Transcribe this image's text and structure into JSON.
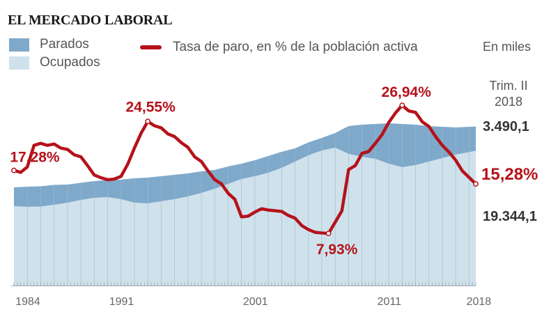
{
  "header": {
    "title": "EL MERCADO LABORAL",
    "units": "En miles",
    "period_line1": "Trim. II",
    "period_line2": "2018"
  },
  "legend": {
    "parados": "Parados",
    "ocupados": "Ocupados",
    "tasa": "Tasa de paro, en % de la población activa"
  },
  "colors": {
    "parados": "#7fa9cb",
    "ocupados": "#cfe2ec",
    "tasa": "#b5121b",
    "gridline": "#9fb9c9"
  },
  "side_labels": {
    "parados_last": "3.490,1",
    "tasa_last": "15,28%",
    "ocupados_last": "19.344,1"
  },
  "chart_data": {
    "type": "area",
    "title": "EL MERCADO LABORAL",
    "xlabel": "",
    "ylabel": "En miles",
    "x_ticks": [
      "1984",
      "1991",
      "2001",
      "2011",
      "2018"
    ],
    "x_range": [
      1984.0,
      2018.5
    ],
    "ylim": [
      0,
      24000
    ],
    "rate_ylim": [
      0,
      26
    ],
    "grid": "vertical-yearly",
    "legend_position": "top-left",
    "years": [
      1984.0,
      1985.0,
      1986.0,
      1987.0,
      1988.0,
      1989.0,
      1990.0,
      1991.0,
      1992.0,
      1993.0,
      1994.0,
      1995.0,
      1996.0,
      1997.0,
      1998.0,
      1999.0,
      2000.0,
      2001.0,
      2002.0,
      2003.0,
      2004.0,
      2005.0,
      2006.0,
      2007.0,
      2008.0,
      2009.0,
      2010.0,
      2011.0,
      2012.0,
      2013.0,
      2014.0,
      2015.0,
      2016.0,
      2017.0,
      2018.5
    ],
    "series": [
      {
        "name": "Ocupados",
        "values": [
          11400,
          11300,
          11350,
          11600,
          11900,
          12300,
          12600,
          12700,
          12400,
          11900,
          11800,
          12100,
          12400,
          12800,
          13300,
          13900,
          14600,
          15300,
          15700,
          16200,
          16900,
          17800,
          18700,
          19400,
          19800,
          18900,
          18500,
          18200,
          17500,
          17000,
          17300,
          17800,
          18300,
          18800,
          19344
        ]
      },
      {
        "name": "Parados",
        "values": [
          2700,
          2900,
          2900,
          2850,
          2600,
          2450,
          2400,
          2450,
          2800,
          3500,
          3700,
          3600,
          3500,
          3300,
          3100,
          2700,
          2500,
          2200,
          2300,
          2400,
          2300,
          1900,
          1850,
          1800,
          2100,
          4000,
          4600,
          5000,
          5800,
          6200,
          5800,
          5100,
          4500,
          3900,
          3490
        ]
      }
    ],
    "rate_series": {
      "name": "Tasa de paro, en % de la población activa",
      "years": [
        1984.0,
        1984.5,
        1985.0,
        1985.5,
        1986.0,
        1986.5,
        1987.0,
        1987.5,
        1988.0,
        1988.5,
        1989.0,
        1989.5,
        1990.0,
        1990.5,
        1991.0,
        1991.5,
        1992.0,
        1992.5,
        1993.0,
        1993.5,
        1994.0,
        1994.5,
        1995.0,
        1995.5,
        1996.0,
        1996.5,
        1997.0,
        1997.5,
        1998.0,
        1998.5,
        1999.0,
        1999.5,
        2000.0,
        2000.5,
        2001.0,
        2001.5,
        2002.0,
        2002.5,
        2003.0,
        2003.5,
        2004.0,
        2004.5,
        2005.0,
        2005.5,
        2006.0,
        2006.5,
        2007.0,
        2007.5,
        2008.0,
        2008.5,
        2009.0,
        2009.5,
        2010.0,
        2010.5,
        2011.0,
        2011.5,
        2012.0,
        2012.5,
        2013.0,
        2013.5,
        2014.0,
        2014.5,
        2015.0,
        2015.5,
        2016.0,
        2016.5,
        2017.0,
        2017.5,
        2018.5
      ],
      "values": [
        17.28,
        17.0,
        17.8,
        21.0,
        21.3,
        21.0,
        21.2,
        20.6,
        20.4,
        19.6,
        19.3,
        18.0,
        16.6,
        16.2,
        15.9,
        16.0,
        16.4,
        18.2,
        20.6,
        22.8,
        24.55,
        23.9,
        23.6,
        22.7,
        22.3,
        21.4,
        20.7,
        19.3,
        18.6,
        17.2,
        15.9,
        15.3,
        13.9,
        13.0,
        10.4,
        10.5,
        11.1,
        11.6,
        11.4,
        11.3,
        11.2,
        10.6,
        10.2,
        9.1,
        8.5,
        8.1,
        8.0,
        7.93,
        9.6,
        11.3,
        17.4,
        18.0,
        19.8,
        20.1,
        21.3,
        22.6,
        24.4,
        25.8,
        26.94,
        26.1,
        25.9,
        24.5,
        23.8,
        22.3,
        21.0,
        20.0,
        18.8,
        17.2,
        15.28
      ]
    },
    "annotations": [
      {
        "text": "17,28%",
        "year": 1984.0,
        "value": 17.28
      },
      {
        "text": "24,55%",
        "year": 1994.0,
        "value": 24.55
      },
      {
        "text": "7,93%",
        "year": 2007.5,
        "value": 7.93
      },
      {
        "text": "26,94%",
        "year": 2013.0,
        "value": 26.94
      },
      {
        "text": "15,28%",
        "year": 2018.5,
        "value": 15.28
      }
    ]
  }
}
